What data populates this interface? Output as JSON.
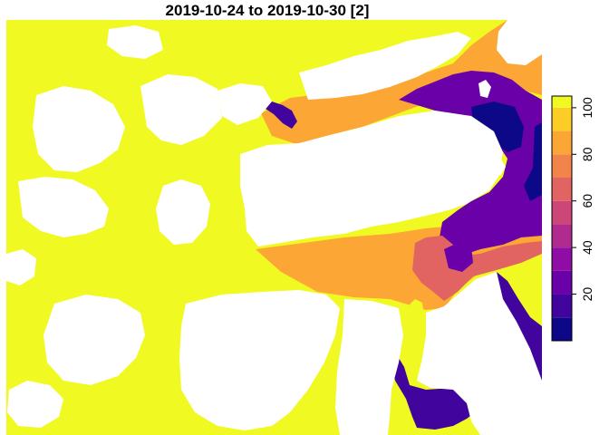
{
  "map": {
    "title": "2019-10-24 to 2019-10-30 [2]",
    "type": "raster-map",
    "land_color": "#ffffff"
  },
  "legend": {
    "type": "continuous-colorbar",
    "orientation": "vertical",
    "placement": "right",
    "range": [
      0,
      100
    ],
    "tick_values": [
      20,
      40,
      60,
      80,
      100
    ],
    "tick_labels": [
      "20",
      "40",
      "60",
      "80",
      "100"
    ],
    "classes": [
      {
        "from": 0,
        "to": 10,
        "color": "#0d0887"
      },
      {
        "from": 10,
        "to": 20,
        "color": "#41049d"
      },
      {
        "from": 20,
        "to": 30,
        "color": "#6a00a8"
      },
      {
        "from": 30,
        "to": 40,
        "color": "#8f0da4"
      },
      {
        "from": 40,
        "to": 50,
        "color": "#b12a90"
      },
      {
        "from": 50,
        "to": 60,
        "color": "#cc4778"
      },
      {
        "from": 60,
        "to": 70,
        "color": "#e16462"
      },
      {
        "from": 70,
        "to": 80,
        "color": "#f2844b"
      },
      {
        "from": 80,
        "to": 90,
        "color": "#fca636"
      },
      {
        "from": 90,
        "to": 100,
        "color": "#fcce25"
      },
      {
        "from": 100,
        "to": 105,
        "color": "#f0f921"
      }
    ]
  },
  "regions": [
    {
      "name": "sea-ice-yellow-west",
      "value": 100,
      "color": "#f0f921"
    },
    {
      "name": "sea-ice-orange-strait",
      "value": 85,
      "color": "#fca636"
    },
    {
      "name": "sea-ice-purple-northeast",
      "value": 25,
      "color": "#6a00a8"
    },
    {
      "name": "sea-ice-darkblue-northeast",
      "value": 5,
      "color": "#0d0887"
    },
    {
      "name": "sea-ice-coral-south",
      "value": 65,
      "color": "#e16462"
    },
    {
      "name": "sea-ice-indigo-south",
      "value": 15,
      "color": "#41049d"
    }
  ]
}
